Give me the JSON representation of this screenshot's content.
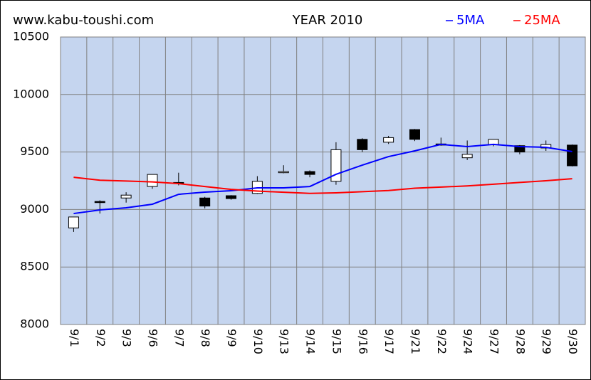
{
  "chart_data": {
    "type": "candlestick",
    "site": "www.kabu-toushi.com",
    "title": "YEAR 2010",
    "categories": [
      "9/1",
      "9/2",
      "9/3",
      "9/6",
      "9/7",
      "9/8",
      "9/9",
      "9/10",
      "9/13",
      "9/14",
      "9/15",
      "9/16",
      "9/17",
      "9/21",
      "9/22",
      "9/24",
      "9/27",
      "9/28",
      "9/29",
      "9/30"
    ],
    "open": [
      8840,
      9070,
      9100,
      9200,
      9235,
      9100,
      9120,
      9140,
      9320,
      9330,
      9245,
      9610,
      9585,
      9695,
      9570,
      9450,
      9565,
      9555,
      9535,
      9560
    ],
    "high": [
      8935,
      9080,
      9150,
      9305,
      9320,
      9110,
      9125,
      9290,
      9385,
      9340,
      9585,
      9620,
      9640,
      9700,
      9625,
      9600,
      9610,
      9560,
      9600,
      9565
    ],
    "low": [
      8805,
      8965,
      9060,
      9180,
      9210,
      9010,
      9085,
      9135,
      9315,
      9280,
      9215,
      9500,
      9570,
      9595,
      9555,
      9430,
      9550,
      9480,
      9510,
      9375
    ],
    "close": [
      8935,
      9060,
      9125,
      9305,
      9225,
      9030,
      9095,
      9245,
      9330,
      9305,
      9520,
      9520,
      9625,
      9610,
      9560,
      9480,
      9610,
      9500,
      9565,
      9380
    ],
    "series": [
      {
        "name": "5MA",
        "color": "#0000ff",
        "values": [
          8965,
          8996,
          9015,
          9046,
          9132,
          9151,
          9163,
          9188,
          9188,
          9200,
          9306,
          9386,
          9460,
          9510,
          9566,
          9547,
          9566,
          9547,
          9541,
          9504
        ]
      },
      {
        "name": "25MA",
        "color": "#ff0000",
        "values": [
          9280,
          9255,
          9248,
          9240,
          9225,
          9200,
          9175,
          9160,
          9150,
          9140,
          9145,
          9155,
          9165,
          9185,
          9195,
          9205,
          9220,
          9235,
          9250,
          9268
        ]
      }
    ],
    "ylim": [
      8000,
      10500
    ],
    "yticks": [
      8000,
      8500,
      9000,
      9500,
      10000,
      10500
    ],
    "grid": true,
    "plot_color": "#c5d5ef"
  }
}
